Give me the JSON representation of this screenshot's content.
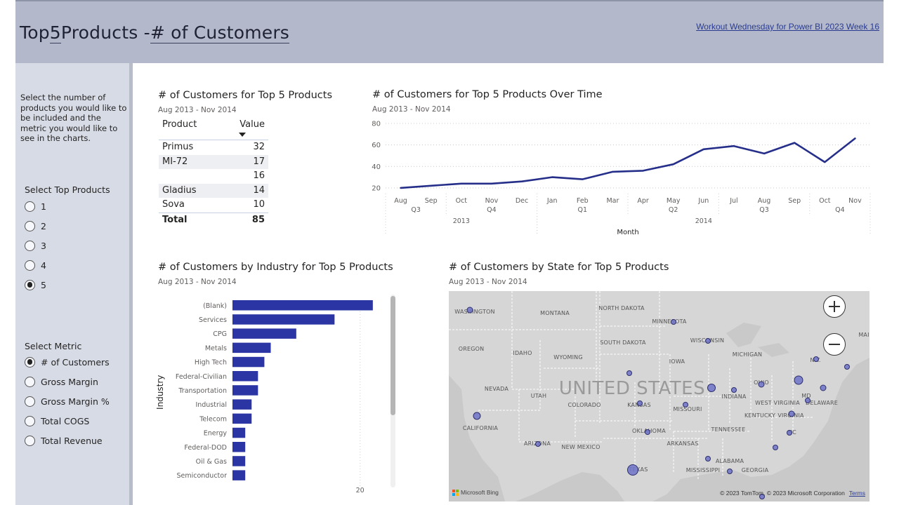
{
  "header": {
    "title_prefix": "Top ",
    "title_count": "5",
    "title_middle": " Products - ",
    "title_metric": "# of Customers",
    "link_text": "Workout Wednesday for Power BI 2023 Week 16"
  },
  "sidebar": {
    "instructions": "Select the number of products you would like to be included and the metric you would like to see in the charts.",
    "top_products": {
      "label": "Select Top Products",
      "options": [
        {
          "label": "1",
          "selected": false
        },
        {
          "label": "2",
          "selected": false
        },
        {
          "label": "3",
          "selected": false
        },
        {
          "label": "4",
          "selected": false
        },
        {
          "label": "5",
          "selected": true
        }
      ]
    },
    "metric": {
      "label": "Select Metric",
      "options": [
        {
          "label": "# of Customers",
          "selected": true
        },
        {
          "label": "Gross Margin",
          "selected": false
        },
        {
          "label": "Gross Margin %",
          "selected": false
        },
        {
          "label": "Total COGS",
          "selected": false
        },
        {
          "label": "Total Revenue",
          "selected": false
        }
      ]
    }
  },
  "table_visual": {
    "title": "# of Customers for Top 5 Products",
    "subtitle": "Aug 2013 - Nov 2014",
    "col_product": "Product",
    "col_value": "Value",
    "rows": [
      {
        "product": "Primus",
        "value": "32"
      },
      {
        "product": "MI-72",
        "value": "17"
      },
      {
        "product": "",
        "value": "16"
      },
      {
        "product": "Gladius",
        "value": "14"
      },
      {
        "product": "Sova",
        "value": "10"
      }
    ],
    "total_label": "Total",
    "total_value": "85"
  },
  "line_visual": {
    "title": "# of Customers for Top 5 Products Over Time",
    "subtitle": "Aug 2013 - Nov 2014"
  },
  "bar_visual": {
    "title": "# of Customers by Industry for Top 5 Products",
    "subtitle": "Aug 2013 - Nov 2014"
  },
  "map_visual": {
    "title": "# of Customers by State for Top 5 Products",
    "subtitle": "Aug 2013 - Nov 2014",
    "country_label": "UNITED STATES",
    "states": [
      "WASHINGTON",
      "MONTANA",
      "NORTH DAKOTA",
      "MINNESOTA",
      "OREGON",
      "IDAHO",
      "SOUTH DAKOTA",
      "WISCONSIN",
      "WYOMING",
      "MICHIGAN",
      "IOWA",
      "N.Y.",
      "NEVADA",
      "UTAH",
      "COLORADO",
      "KANSAS",
      "MISSOURI",
      "INDIANA",
      "OHIO",
      "MD",
      "WEST VIRGINIA",
      "DELAWARE",
      "KENTUCKY",
      "VIRGINIA",
      "CALIFORNIA",
      "OKLAHOMA",
      "TENNESSEE",
      "NC",
      "ARIZONA",
      "NEW MEXICO",
      "ARKANSAS",
      "ALABAMA",
      "GEORGIA",
      "TEXAS",
      "MISSISSIPPI",
      "MAI"
    ],
    "bing_label": "Microsoft Bing",
    "copyright": "© 2023 TomTom, © 2023 Microsoft Corporation",
    "terms": "Terms",
    "water_color": "#c9c9c9",
    "land_color": "#d6d6d6",
    "bubble_color": "#6f73c9"
  },
  "chart_data": [
    {
      "type": "table",
      "title": "# of Customers for Top 5 Products",
      "columns": [
        "Product",
        "Value"
      ],
      "rows": [
        [
          "Primus",
          32
        ],
        [
          "MI-72",
          17
        ],
        [
          "",
          16
        ],
        [
          "Gladius",
          14
        ],
        [
          "Sova",
          10
        ]
      ],
      "total": 85
    },
    {
      "type": "line",
      "title": "# of Customers for Top 5 Products Over Time",
      "xlabel": "Month",
      "x": [
        "Aug",
        "Sep",
        "Oct",
        "Nov",
        "Dec",
        "Jan",
        "Feb",
        "Mar",
        "Apr",
        "May",
        "Jun",
        "Jul",
        "Aug",
        "Sep",
        "Oct",
        "Nov"
      ],
      "quarters": [
        {
          "label": "Q3",
          "start": 0,
          "end": 1
        },
        {
          "label": "Q4",
          "start": 2,
          "end": 4
        },
        {
          "label": "Q1",
          "start": 5,
          "end": 7
        },
        {
          "label": "Q2",
          "start": 8,
          "end": 10
        },
        {
          "label": "Q3",
          "start": 11,
          "end": 13
        },
        {
          "label": "Q4",
          "start": 14,
          "end": 15
        }
      ],
      "years": [
        {
          "label": "2013",
          "start": 0,
          "end": 4
        },
        {
          "label": "2014",
          "start": 5,
          "end": 15
        }
      ],
      "series": [
        {
          "values": [
            20,
            22,
            24,
            24,
            26,
            30,
            28,
            35,
            36,
            42,
            56,
            59,
            52,
            62,
            44,
            66
          ]
        }
      ],
      "yticks": [
        20,
        40,
        60,
        80
      ],
      "ylim": [
        16,
        80
      ],
      "grid": true,
      "color": "#252f8a"
    },
    {
      "type": "bar",
      "title": "# of Customers by Industry for Top 5 Products",
      "ylabel": "Industry",
      "categories": [
        "(Blank)",
        "Services",
        "CPG",
        "Metals",
        "High Tech",
        "Federal-Civilian",
        "Transportation",
        "Industrial",
        "Telecom",
        "Energy",
        "Federal-DOD",
        "Oil & Gas",
        "Semiconductor"
      ],
      "values": [
        22,
        16,
        10,
        6,
        5,
        4,
        4,
        3,
        3,
        2,
        2,
        2,
        2
      ],
      "xticks": [
        20
      ],
      "xlim": [
        0,
        24
      ],
      "color": "#2b35a3"
    }
  ]
}
